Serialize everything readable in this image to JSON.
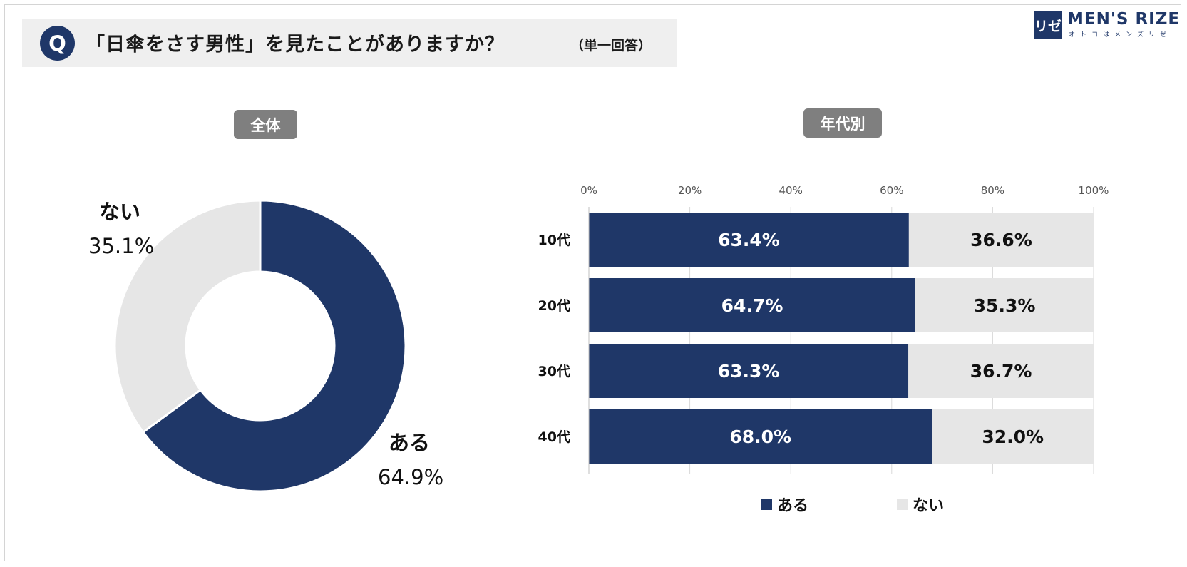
{
  "question": {
    "badge": "Q",
    "title": "「日傘をさす男性」を見たことがありますか？",
    "note": "（単一回答）"
  },
  "brand": {
    "mark": "リゼ",
    "name": "MEN'S RIZE",
    "tagline": "オトコはメンズリゼ"
  },
  "colors": {
    "aru": "#1f3768",
    "nai": "#e6e6e6",
    "pill": "#7f7f7f"
  },
  "chart_data": [
    {
      "type": "pie",
      "title": "全体",
      "donut": true,
      "slices": [
        {
          "label": "ある",
          "value": 64.9,
          "display": "64.9%"
        },
        {
          "label": "ない",
          "value": 35.1,
          "display": "35.1%"
        }
      ]
    },
    {
      "type": "bar",
      "orientation": "horizontal",
      "stacked": true,
      "title": "年代別",
      "categories": [
        "10代",
        "20代",
        "30代",
        "40代"
      ],
      "series": [
        {
          "name": "ある",
          "values": [
            63.4,
            64.7,
            63.3,
            68.0
          ],
          "labels": [
            "63.4%",
            "64.7%",
            "63.3%",
            "68.0%"
          ]
        },
        {
          "name": "ない",
          "values": [
            36.6,
            35.3,
            36.7,
            32.0
          ],
          "labels": [
            "36.6%",
            "35.3%",
            "36.7%",
            "32.0%"
          ]
        }
      ],
      "xlim": [
        0,
        100
      ],
      "xticks": [
        "0%",
        "20%",
        "40%",
        "60%",
        "80%",
        "100%"
      ],
      "legend": "bottom",
      "grid": true
    }
  ]
}
